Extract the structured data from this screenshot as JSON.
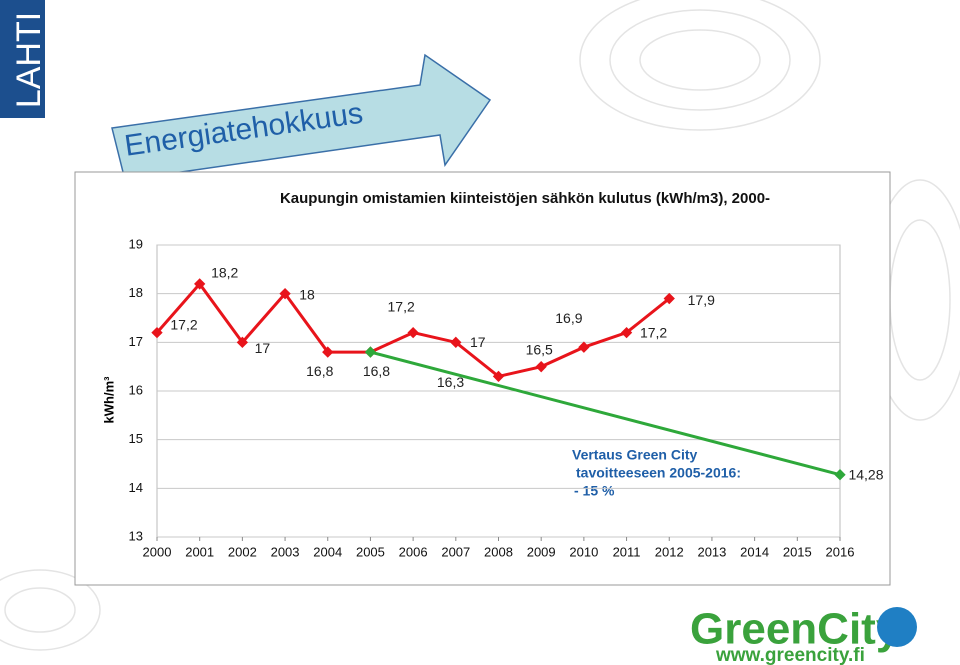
{
  "slide": {
    "logo": "LAHTI",
    "heading": "Energiatehokkuus",
    "brand": "GreenCity",
    "url": "www.greencity.fi"
  },
  "chart_data": {
    "type": "line",
    "title": "Kaupungin omistamien kiinteistöjen sähkön kulutus (kWh/m3), 2000-",
    "y_label": "kWh/m³",
    "x": [
      2000,
      2001,
      2002,
      2003,
      2004,
      2005,
      2006,
      2007,
      2008,
      2009,
      2010,
      2011,
      2012,
      2013,
      2014,
      2015,
      2016
    ],
    "xlim": [
      2000,
      2016
    ],
    "xticks": [
      2000,
      2001,
      2002,
      2003,
      2004,
      2005,
      2006,
      2007,
      2008,
      2009,
      2010,
      2011,
      2012,
      2013,
      2014,
      2015,
      2016
    ],
    "ylim": [
      13,
      19
    ],
    "yticks": [
      13,
      14,
      15,
      16,
      17,
      18,
      19
    ],
    "grid": true,
    "series": [
      {
        "color": "#e8141b",
        "values": [
          17.2,
          18.2,
          17,
          18,
          16.8,
          16.8,
          17.2,
          17,
          16.3,
          16.5,
          16.9,
          17.2,
          17.9,
          null,
          null,
          null,
          null
        ],
        "value_labels": [
          "17,2",
          "18,2",
          "17",
          "18",
          "16,8",
          "16,8",
          "17,2",
          "17",
          "16,3",
          "16,5",
          "16,9",
          "17,2",
          "17,9",
          null,
          null,
          null,
          null
        ]
      },
      {
        "color": "#2ea83a",
        "x": [
          2005,
          2016
        ],
        "values": [
          16.8,
          14.28
        ],
        "value_labels": [
          null,
          "14,28"
        ]
      }
    ],
    "annotation": [
      "Vertaus Green City",
      "tavoitteeseen 2005-2016:",
      "- 15 %"
    ]
  }
}
